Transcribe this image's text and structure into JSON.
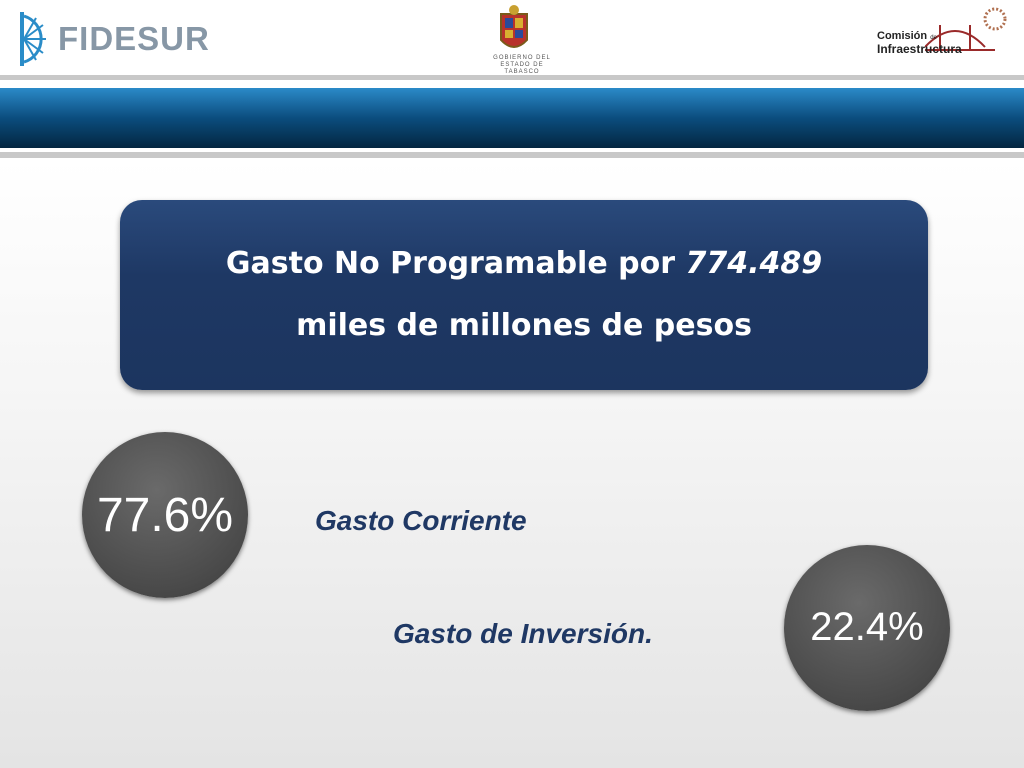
{
  "header": {
    "left_logo": "FIDESUR",
    "center_logo": [
      "GOBIERNO DEL",
      "ESTADO DE",
      "TABASCO"
    ],
    "right_logo": {
      "line1": "Comisión",
      "line1_small": "de",
      "line2": "Infraestructura"
    }
  },
  "box": {
    "line1": "Gasto No Programable por ",
    "line1_amount": "774.489",
    "line2": "miles de millones de pesos"
  },
  "items": [
    {
      "percent": "77.6%",
      "label": "Gasto Corriente"
    },
    {
      "percent": "22.4%",
      "label": "Gasto de Inversión."
    }
  ]
}
